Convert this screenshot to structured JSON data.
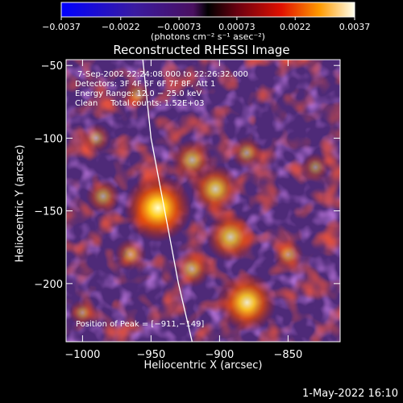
{
  "chart_data": {
    "type": "heatmap",
    "title": "Reconstructed RHESSI Image",
    "xlabel": "Heliocentric X (arcsec)",
    "ylabel": "Heliocentric Y (arcsec)",
    "xlim": [
      -1012,
      -812
    ],
    "ylim": [
      -240,
      -46
    ],
    "x_ticks": [
      -1000,
      -950,
      -900,
      -850
    ],
    "x_tick_labels": [
      "−1000",
      "−950",
      "−900",
      "−850"
    ],
    "y_ticks": [
      -50,
      -100,
      -150,
      -200
    ],
    "y_tick_labels": [
      "−50",
      "−100",
      "−150",
      "−200"
    ],
    "colorbar": {
      "range": [
        -0.0037,
        0.0037
      ],
      "ticks": [
        -0.0037,
        -0.0022,
        -0.00073,
        0.00073,
        0.0022,
        0.0037
      ],
      "tick_labels": [
        "−0.0037",
        "−0.0022",
        "−0.00073",
        "0.00073",
        "0.0022",
        "0.0037"
      ],
      "units": "(photons cm⁻² s⁻¹ asec⁻²)"
    },
    "annotations": {
      "time": "7-Sep-2002 22:24:08.000 to 22:26:32.000",
      "detectors": "Detectors: 3F 4F 5F 6F 7F 8F, Att 1",
      "energy": "Energy Range: 12.0 − 25.0 keV",
      "clean": "Clean     Total counts: 1.52E+03",
      "peak": "Position of Peak = [−911,−149]"
    },
    "sources": [
      {
        "x": -945,
        "y": -148,
        "value": 0.0037
      },
      {
        "x": -903,
        "y": -135,
        "value": 0.0022
      },
      {
        "x": -892,
        "y": -168,
        "value": 0.0022
      },
      {
        "x": -880,
        "y": -213,
        "value": 0.003
      },
      {
        "x": -920,
        "y": -115,
        "value": 0.0015
      },
      {
        "x": -920,
        "y": -190,
        "value": 0.0012
      },
      {
        "x": -985,
        "y": -140,
        "value": 0.001
      },
      {
        "x": -965,
        "y": -180,
        "value": 0.0008
      },
      {
        "x": -990,
        "y": -100,
        "value": 0.0006
      },
      {
        "x": -880,
        "y": -110,
        "value": 0.0008
      },
      {
        "x": -850,
        "y": -180,
        "value": 0.0007
      },
      {
        "x": -830,
        "y": -120,
        "value": 0.0005
      },
      {
        "x": -1000,
        "y": -220,
        "value": 0.0004
      },
      {
        "x": -960,
        "y": -70,
        "value": 0.0005
      }
    ],
    "limb_curve": [
      [
        -956,
        -46
      ],
      [
        -950,
        -100
      ],
      [
        -940,
        -150
      ],
      [
        -930,
        -200
      ],
      [
        -920,
        -240
      ]
    ]
  },
  "footer_timestamp": "1-May-2022 16:10"
}
